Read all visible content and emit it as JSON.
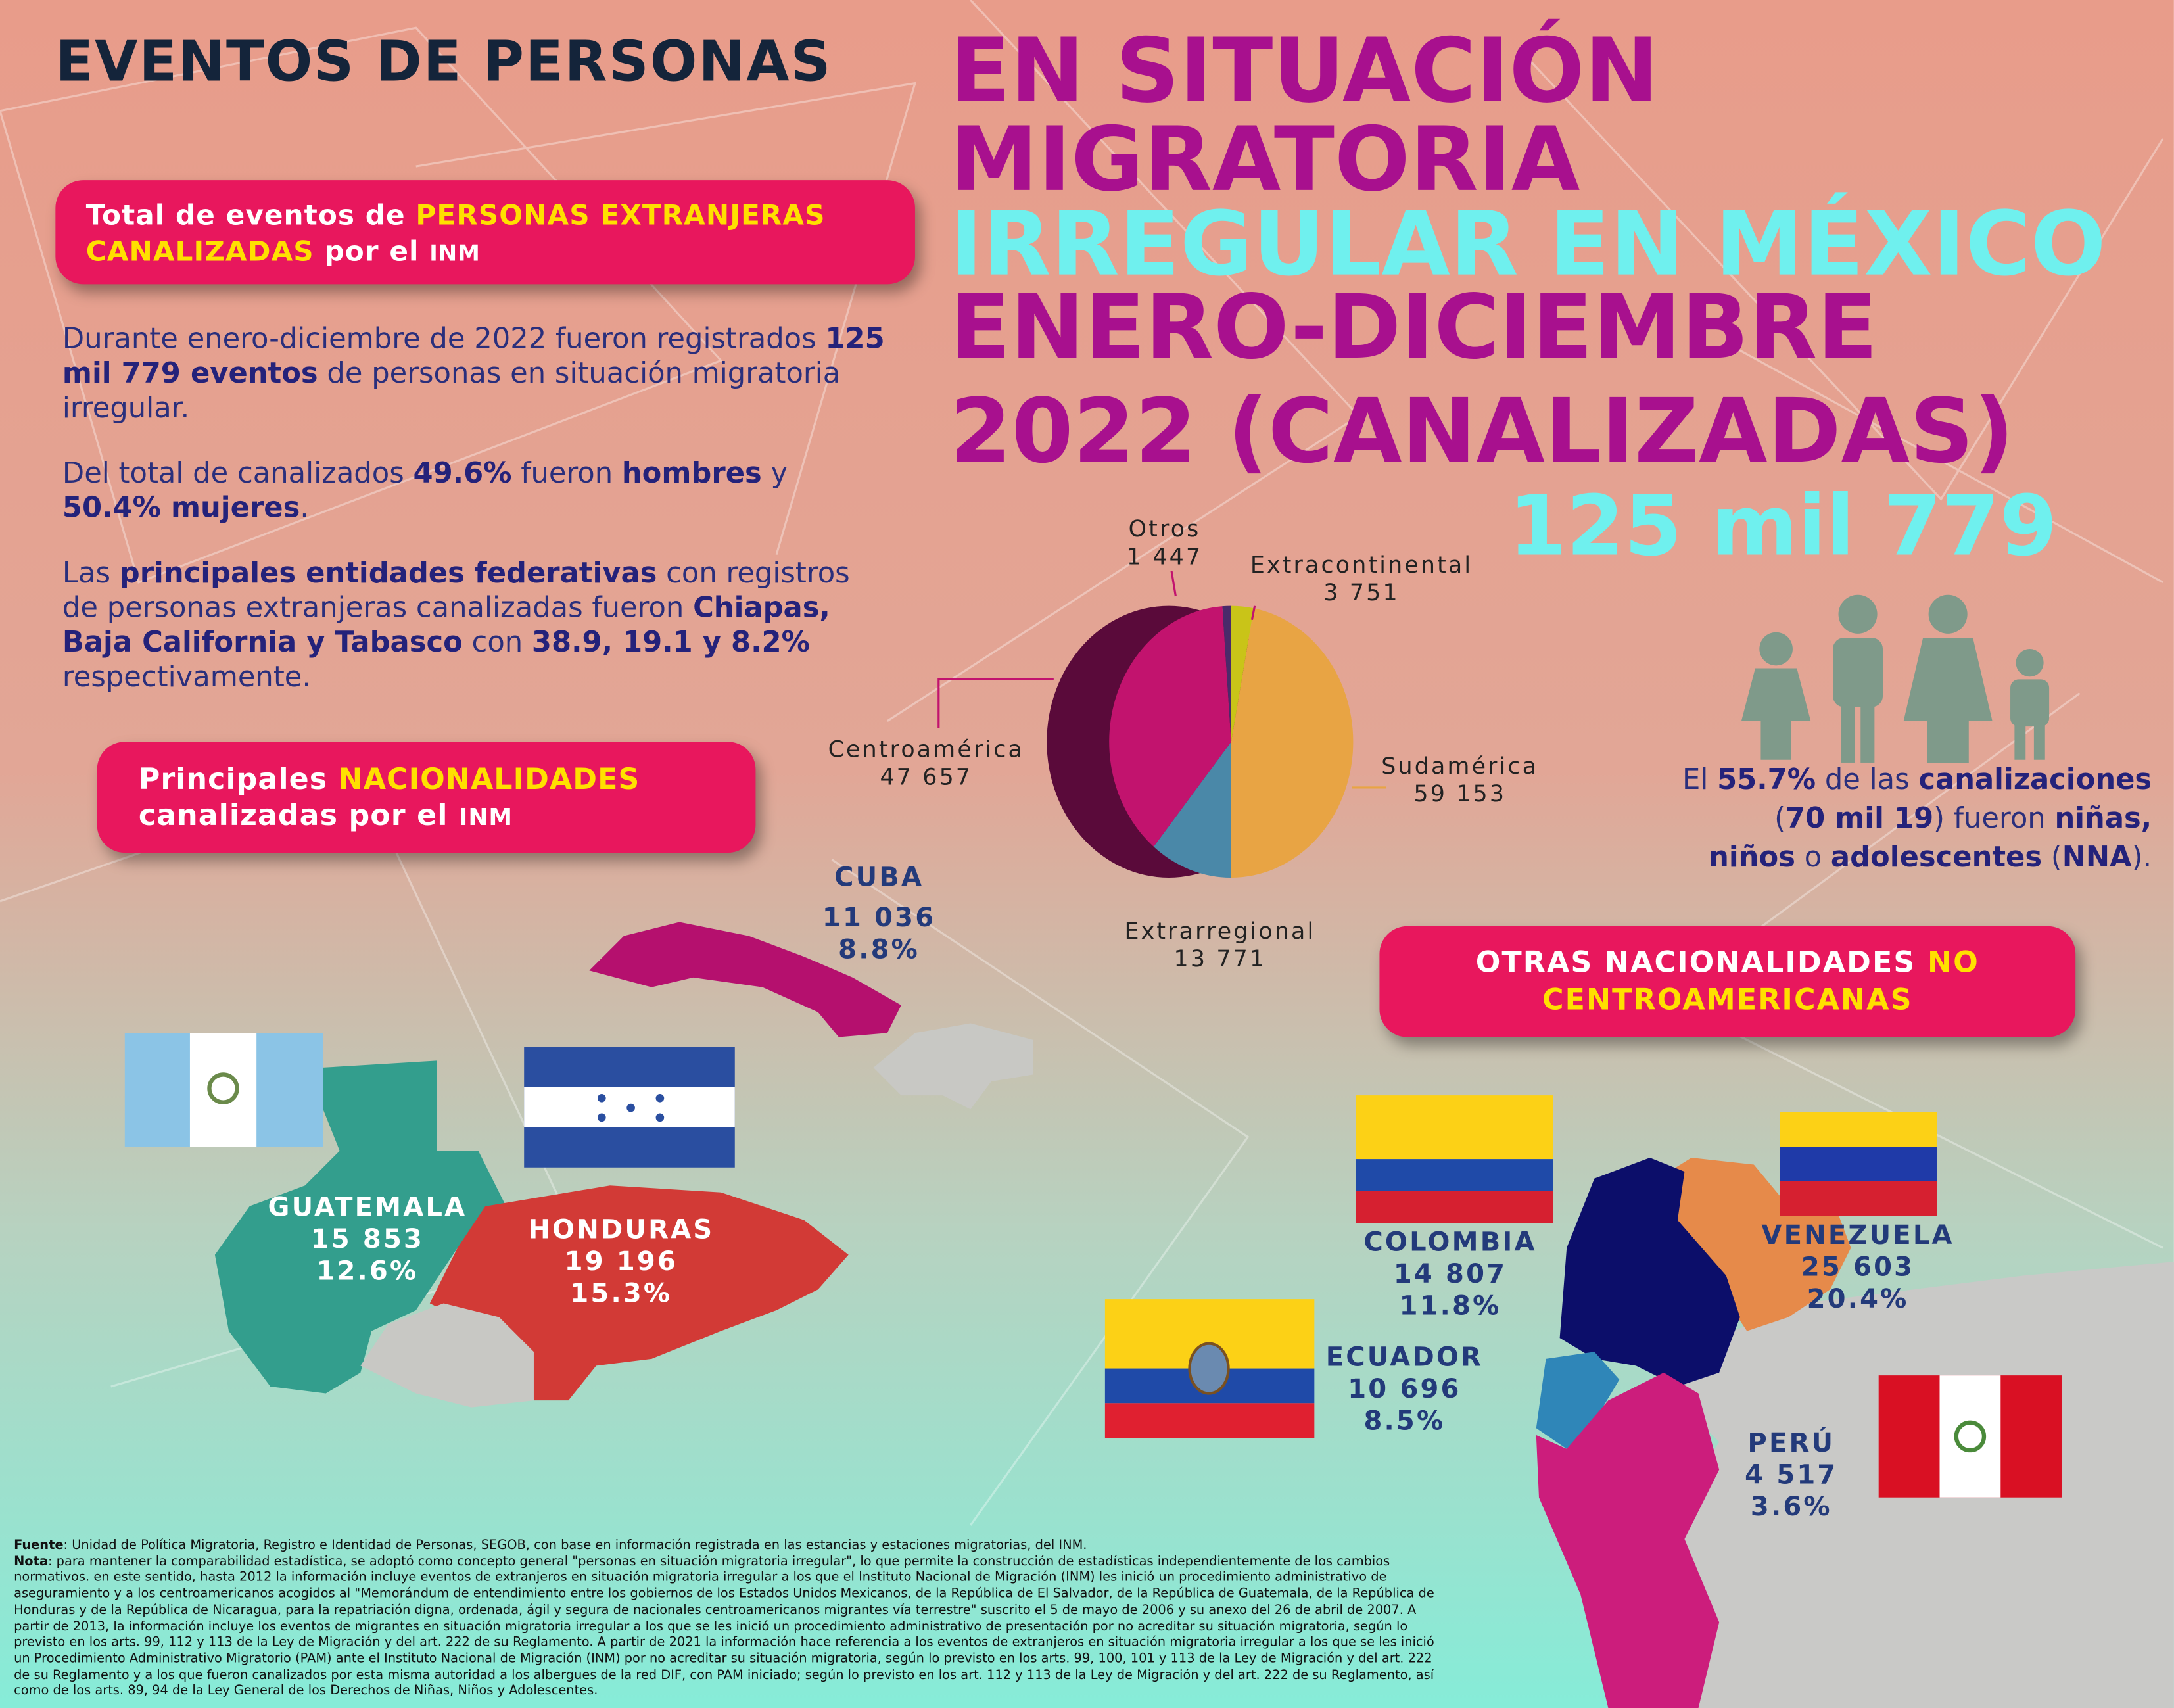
{
  "title": {
    "lead": "EVENTOS DE PERSONAS",
    "lines": [
      "EN SITUACIÓN",
      "MIGRATORIA",
      "IRREGULAR EN MÉXICO",
      "ENERO-DICIEMBRE",
      "2022 (CANALIZADAS)"
    ],
    "total": "125 mil 779"
  },
  "total_box": [
    "Total de eventos de ",
    "PERSONAS EXTRANJERAS CANALIZADAS",
    " por el ",
    "INM"
  ],
  "summary": [
    [
      "Durante enero-diciembre de 2022 fueron registrados ",
      "125 mil 779 eventos",
      " de personas en situación migratoria irregular."
    ],
    [
      "Del total de canalizados ",
      "49.6%",
      " fueron ",
      "hombres",
      " y ",
      "50.4% mujeres",
      "."
    ],
    [
      "Las ",
      "principales entidades federativas",
      " con registros de personas extranjeras canalizadas fueron ",
      "Chiapas, Baja California y Tabasco",
      " con ",
      "38.9, 19.1 y 8.2%",
      " respectivamente."
    ]
  ],
  "nationalities_box": [
    "Principales ",
    "NACIONALIDADES",
    "canalizadas por el ",
    "INM"
  ],
  "children_note": [
    "El ",
    "55.7%",
    " de las ",
    "canalizaciones",
    " (",
    "70 mil 19",
    ") fueron ",
    "niñas,",
    " ",
    "niños",
    " o ",
    "adolescentes",
    " (",
    "NNA",
    ")."
  ],
  "other_box": [
    "OTRAS NACIONALIDADES ",
    "NO",
    "CENTROAMERICANAS"
  ],
  "chart_data": {
    "type": "pie",
    "categories": [
      "Extracontinental",
      "Sudamérica",
      "Extrarregional",
      "Centroamérica",
      "Otros"
    ],
    "values": [
      3751,
      59153,
      13771,
      47657,
      1447
    ],
    "value_labels": [
      "3 751",
      "59 153",
      "13 771",
      "47 657",
      "1 447"
    ],
    "colors": [
      "#c9c418",
      "#e8a444",
      "#4a88a8",
      "#c2136e",
      "#4a2a6a"
    ]
  },
  "countries": [
    {
      "name": "CUBA",
      "count": "11 036",
      "share": "8.8%"
    },
    {
      "name": "GUATEMALA",
      "count": "15 853",
      "share": "12.6%"
    },
    {
      "name": "HONDURAS",
      "count": "19 196",
      "share": "15.3%"
    },
    {
      "name": "COLOMBIA",
      "count": "14 807",
      "share": "11.8%"
    },
    {
      "name": "VENEZUELA",
      "count": "25 603",
      "share": "20.4%"
    },
    {
      "name": "ECUADOR",
      "count": "10 696",
      "share": "8.5%"
    },
    {
      "name": "PERÚ",
      "count": "4 517",
      "share": "3.6%"
    }
  ],
  "footnote": {
    "source_label": "Fuente",
    "source": ": Unidad de Política Migratoria, Registro e Identidad de Personas, SEGOB, con base en información registrada en las estancias y estaciones migratorias, del INM.",
    "note_label": "Nota",
    "note": ": para mantener la comparabilidad estadística, se adoptó como concepto general \"personas en situación migratoria irregular\", lo que permite la construcción de estadísticas independientemente de los cambios normativos. en este sentido, hasta 2012 la información incluye eventos de extranjeros en situación migratoria irregular a los que el Instituto Nacional de Migración (INM) les inició un procedimiento administrativo de aseguramiento y a los centroamericanos acogidos al \"Memorándum de entendimiento entre los gobiernos de los Estados Unidos Mexicanos, de la República de El Salvador, de la República de Guatemala, de la República de Honduras y de la República de Nicaragua, para la repatriación digna, ordenada, ágil y segura de nacionales centroamericanos migrantes vía terrestre\" suscrito el 5 de mayo de 2006 y su anexo del 26 de abril de 2007. A partir de 2013, la información incluye los eventos de migrantes en situación migratoria irregular a los que se les inició un procedimiento administrativo de presentación por no acreditar su situación migratoria, según lo previsto en los arts. 99, 112 y 113 de la Ley de Migración y del art. 222 de su Reglamento. A partir de 2021 la información hace referencia a los eventos de extranjeros en situación migratoria irregular a los que se les inició un Procedimiento Administrativo Migratorio (PAM) ante el Instituto Nacional de Migración (INM) por no acreditar su situación migratoria, según lo previsto en los arts. 99, 100, 101 y 113 de la Ley de Migración y del art. 222 de su Reglamento y a los que fueron canalizados por esta misma autoridad a los albergues de la red DIF, con PAM iniciado; según lo previsto en los art. 112 y 113 de la Ley de Migración y del art. 222 de su Reglamento, así como de los arts. 89, 94 de la Ley General de los Derechos de Niñas, Niños y Adolescentes."
  }
}
